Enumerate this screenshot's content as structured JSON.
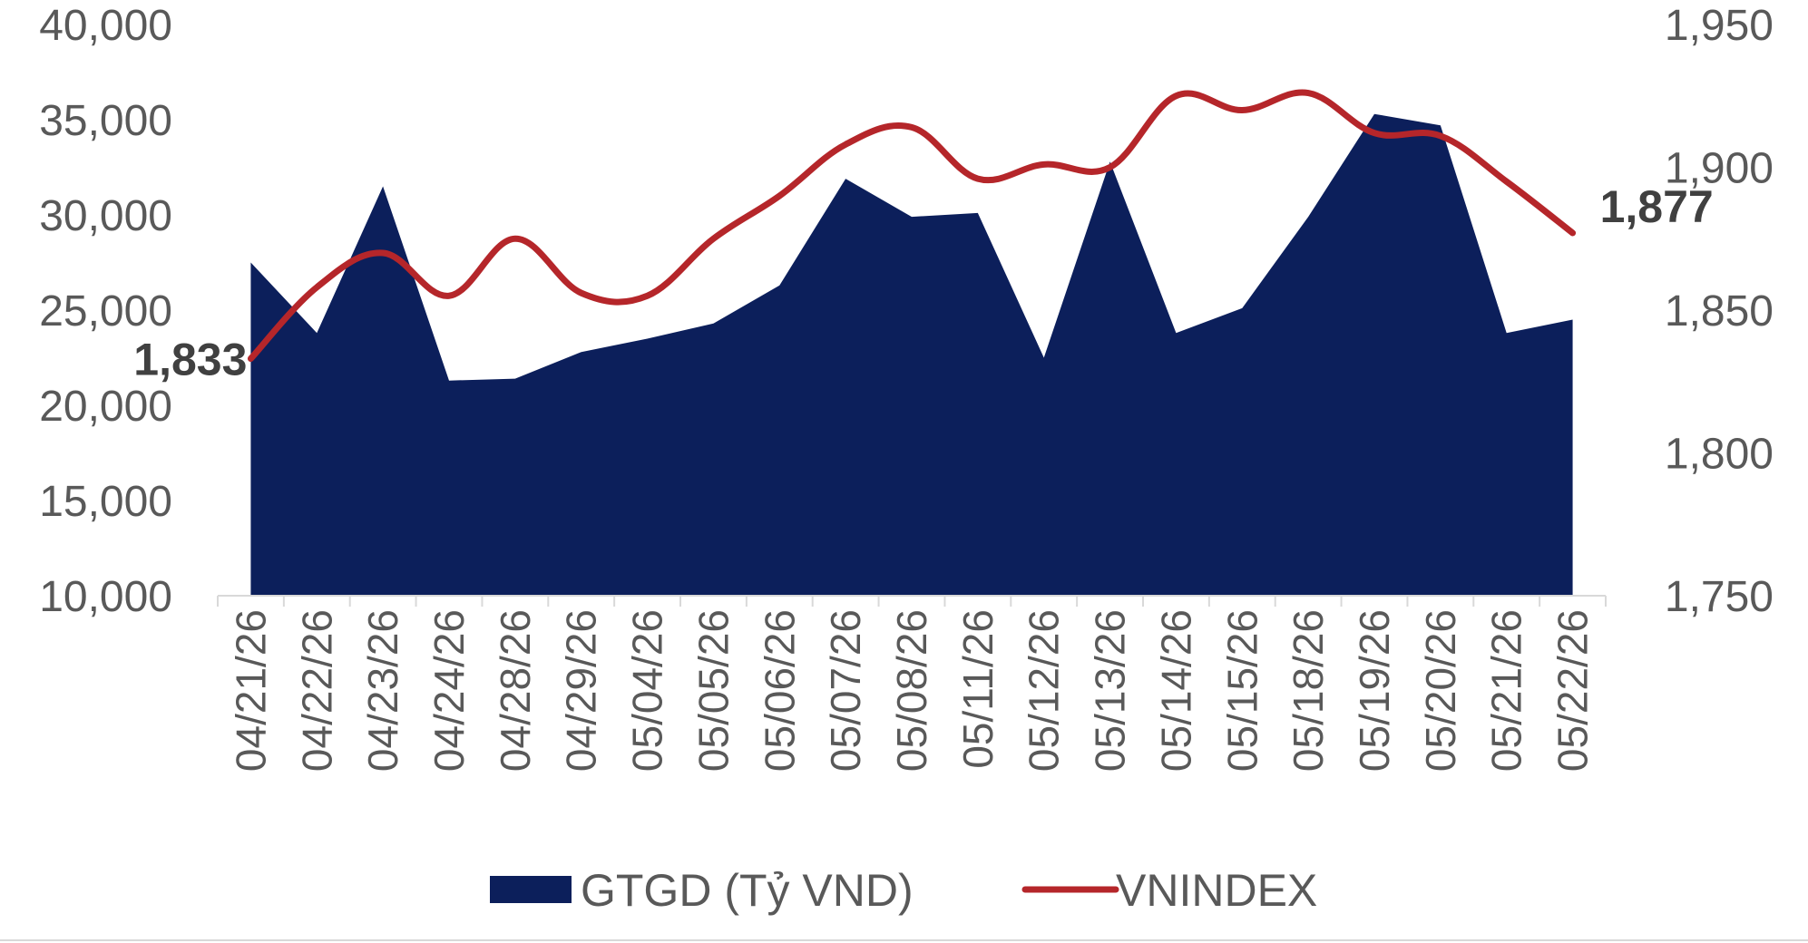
{
  "chart_data": {
    "type": "area",
    "categories": [
      "04/21/26",
      "04/22/26",
      "04/23/26",
      "04/24/26",
      "04/28/26",
      "04/29/26",
      "05/04/26",
      "05/05/26",
      "05/06/26",
      "05/07/26",
      "05/08/26",
      "05/11/26",
      "05/12/26",
      "05/13/26",
      "05/14/26",
      "05/15/26",
      "05/18/26",
      "05/19/26",
      "05/20/26",
      "05/21/26",
      "05/22/26"
    ],
    "series": [
      {
        "name": "GTGD (Tỷ VND)",
        "type": "area",
        "axis": "left",
        "color": "#0c1f5b",
        "values": [
          27500,
          23800,
          31500,
          21300,
          21400,
          22800,
          23500,
          24300,
          26300,
          31900,
          29900,
          30100,
          22500,
          32800,
          23800,
          25100,
          29900,
          35300,
          34700,
          23800,
          24500
        ]
      },
      {
        "name": "VNINDEX",
        "type": "line",
        "axis": "right",
        "color": "#b5262a",
        "values": [
          1833,
          1858,
          1870,
          1855,
          1875,
          1856,
          1855,
          1875,
          1890,
          1908,
          1914,
          1896,
          1901,
          1900,
          1925,
          1920,
          1926,
          1912,
          1911,
          1895,
          1877
        ]
      }
    ],
    "y_left": {
      "min": 10000,
      "max": 40000,
      "ticks": [
        "10,000",
        "15,000",
        "20,000",
        "25,000",
        "30,000",
        "35,000",
        "40,000"
      ]
    },
    "y_right": {
      "min": 1750,
      "max": 1950,
      "ticks": [
        "1,750",
        "1,800",
        "1,850",
        "1,900",
        "1,950"
      ]
    },
    "data_labels": {
      "first": "1,833",
      "last": "1,877"
    },
    "legend": {
      "position": "bottom",
      "items": [
        "GTGD (Tỷ VND)",
        "VNINDEX"
      ]
    },
    "grid": false
  }
}
